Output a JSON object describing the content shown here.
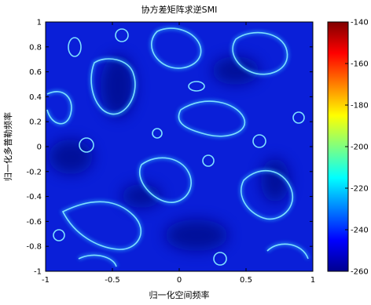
{
  "chart_data": {
    "type": "heatmap",
    "title": "协方差矩阵求逆SMI",
    "xlabel": "归一化空间频率",
    "ylabel": "归一化多普勒频率",
    "xlim": [
      -1,
      1
    ],
    "ylim": [
      -1,
      1
    ],
    "x_ticks": [
      -1,
      -0.5,
      0,
      0.5,
      1
    ],
    "x_tick_labels": [
      "-1",
      "-0.5",
      "0",
      "0.5",
      "1"
    ],
    "y_ticks": [
      1,
      0.8,
      0.6,
      0.4,
      0.2,
      0,
      -0.2,
      -0.4,
      -0.6,
      -0.8,
      -1
    ],
    "y_tick_labels": [
      "1",
      "0.8",
      "0.6",
      "0.4",
      "0.2",
      "0",
      "-0.2",
      "-0.4",
      "-0.6",
      "-0.8",
      "-1"
    ],
    "colorbar": {
      "colormap": "jet",
      "range": [
        -260,
        -140
      ],
      "ticks": [
        -140,
        -160,
        -180,
        -200,
        -220,
        -240,
        -260
      ],
      "tick_labels": [
        "-140",
        "-160",
        "-180",
        "-200",
        "-220",
        "-240",
        "-260"
      ]
    },
    "grid": false,
    "dominant_level": -240,
    "contour_level": -220
  }
}
